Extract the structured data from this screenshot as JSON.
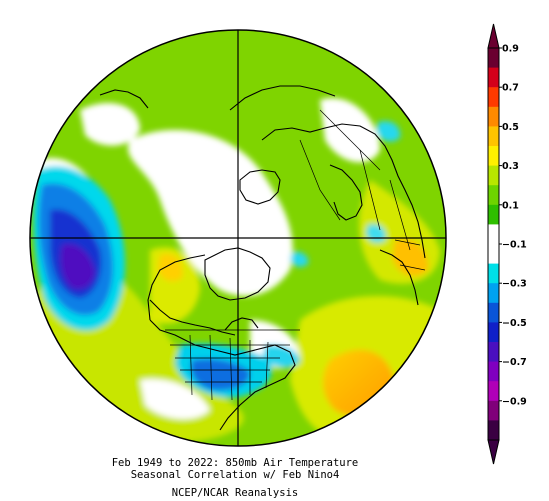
{
  "map": {
    "projection": "polar stereographic (northern hemisphere)",
    "field": "correlation"
  },
  "caption": {
    "line1": "Feb 1949 to 2022: 850mb Air Temperature",
    "line2": "Seasonal Correlation w/ Feb Nino4",
    "line3": "NCEP/NCAR Reanalysis"
  },
  "colorbar": {
    "labels": [
      "0.9",
      "0.7",
      "0.5",
      "0.3",
      "0.1",
      "−0.1",
      "−0.3",
      "−0.5",
      "−0.7",
      "−0.9"
    ],
    "colors": [
      "#6a0030",
      "#d4001a",
      "#ff3a00",
      "#ff8a00",
      "#ffc400",
      "#fff000",
      "#b8e600",
      "#6ed400",
      "#2fbf00",
      "#ffffff",
      "#ffffff",
      "#00e0e8",
      "#00a2f0",
      "#0a55d8",
      "#1020c8",
      "#4a10c0",
      "#8000c0",
      "#b000b8",
      "#80007a",
      "#3a0042"
    ]
  }
}
